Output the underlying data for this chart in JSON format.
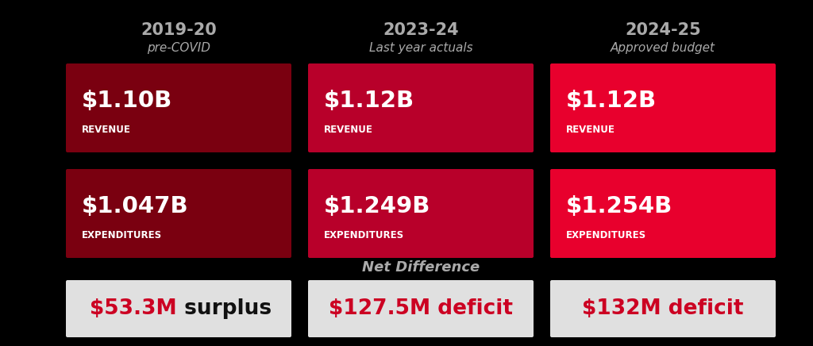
{
  "background_color": "#000000",
  "columns": [
    {
      "year": "2019-20",
      "subtitle": "pre-COVID",
      "revenue_value": "$1.10B",
      "revenue_label": "REVENUE",
      "revenue_color": "#7a0010",
      "expenditure_value": "$1.047B",
      "expenditure_label": "EXPENDITURES",
      "expenditure_color": "#7a0010",
      "net_value": "$53.3M",
      "net_type": " surplus",
      "net_value_color": "#cc0022",
      "net_type_color": "#111111"
    },
    {
      "year": "2023-24",
      "subtitle": "Last year actuals",
      "revenue_value": "$1.12B",
      "revenue_label": "REVENUE",
      "revenue_color": "#b8002a",
      "expenditure_value": "$1.249B",
      "expenditure_label": "EXPENDITURES",
      "expenditure_color": "#b8002a",
      "net_value": "$127.5M deficit",
      "net_type": "",
      "net_value_color": "#cc0022",
      "net_type_color": "#cc0022"
    },
    {
      "year": "2024-25",
      "subtitle": "Approved budget",
      "revenue_value": "$1.12B",
      "revenue_label": "REVENUE",
      "revenue_color": "#e8002d",
      "expenditure_value": "$1.254B",
      "expenditure_label": "EXPENDITURES",
      "expenditure_color": "#e8002d",
      "net_value": "$132M deficit",
      "net_type": "",
      "net_value_color": "#cc0022",
      "net_type_color": "#cc0022"
    }
  ],
  "net_diff_label": "Net Difference",
  "box_bg_color": "#e0e0e0",
  "header_color": "#aaaaaa",
  "year_fontsize": 15,
  "subtitle_fontsize": 11,
  "value_fontsize": 21,
  "label_fontsize": 8.5,
  "net_label_fontsize": 13,
  "net_value_fontsize": 19
}
